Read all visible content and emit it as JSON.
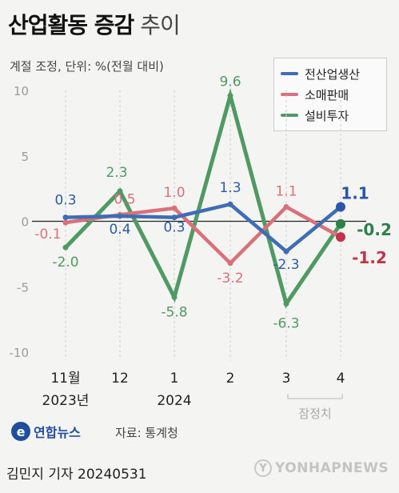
{
  "header": {
    "title_bold": "산업활동 증감",
    "title_light": "추이",
    "subtitle": "계절 조정, 단위: %(전월 대비)"
  },
  "colors": {
    "전산업생산": "#3f6db5",
    "소매판매": "#d9707a",
    "설비투자": "#4f9a63",
    "zero_line": "#222222",
    "grid": "#cfcfcf"
  },
  "chart_data": {
    "type": "line",
    "categories": [
      "11월",
      "12",
      "1",
      "2",
      "3",
      "4"
    ],
    "year_labels": [
      {
        "category": "11월",
        "text": "2023년"
      },
      {
        "category": "1",
        "text": "2024"
      }
    ],
    "period_note": {
      "category": "4",
      "text": "잠정치"
    },
    "y_ticks": [
      "10",
      "5",
      "0",
      "-5",
      "-10"
    ],
    "ylim": [
      -10,
      10
    ],
    "series": [
      {
        "name": "전산업생산",
        "values": [
          0.3,
          0.4,
          0.3,
          1.3,
          -2.3,
          1.1
        ],
        "labels": [
          "0.3",
          "0.4",
          "0.3",
          "1.3",
          "-2.3",
          "1.1"
        ]
      },
      {
        "name": "소매판매",
        "values": [
          -0.1,
          0.5,
          1.0,
          -3.2,
          1.1,
          -1.2
        ],
        "labels": [
          "-0.1",
          "0.5",
          "1.0",
          "-3.2",
          "1.1",
          "-1.2"
        ]
      },
      {
        "name": "설비투자",
        "values": [
          -2.0,
          2.3,
          -5.8,
          9.6,
          -6.3,
          -0.2
        ],
        "labels": [
          "-2.0",
          "2.3",
          "-5.8",
          "9.6",
          "-6.3",
          "-0.2"
        ]
      }
    ],
    "legend_position": "top-right",
    "grid": "vertical dashed per category"
  },
  "footer": {
    "logo_mark": "e",
    "logo_text": "연합뉴스",
    "source": "자료: 통계청",
    "byline": "김민지 기자  20240531",
    "watermark": "YONHAPNEWS",
    "watermark_mark": "Y"
  }
}
